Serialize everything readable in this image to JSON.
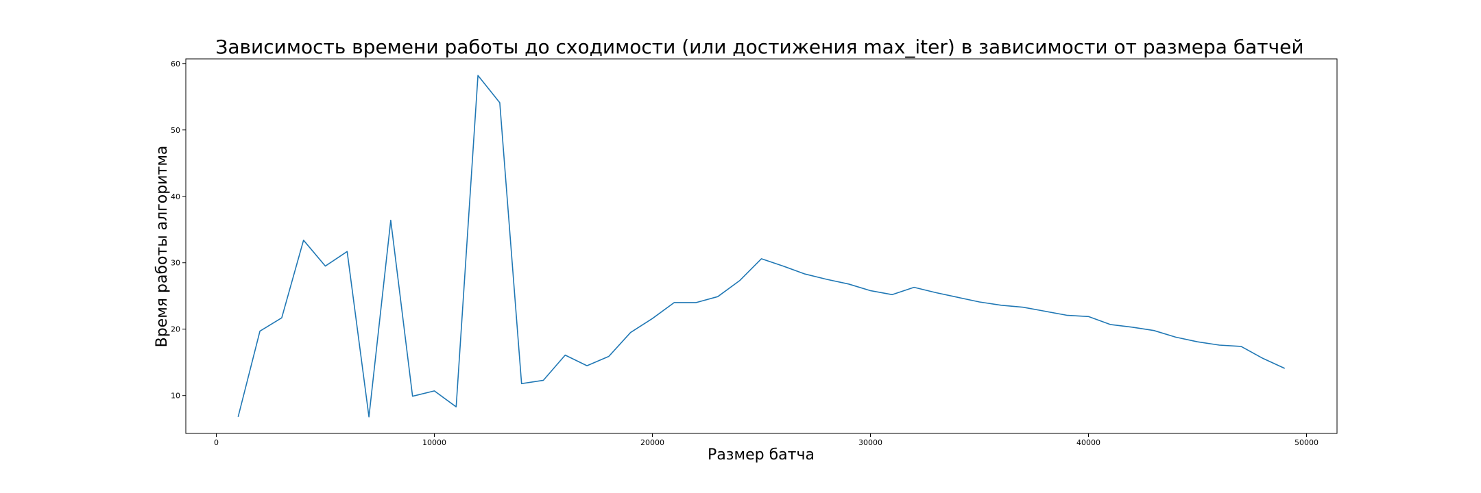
{
  "chart_data": {
    "type": "line",
    "title": "Зависимость времени работы до сходимости (или достижения max_iter) в зависимости от размера батчей",
    "xlabel": "Размер батча",
    "ylabel": "Время работы алгоритма",
    "xlim": [
      -1400,
      51400
    ],
    "ylim": [
      4.3,
      60.7
    ],
    "xticks": [
      0,
      10000,
      20000,
      30000,
      40000,
      50000
    ],
    "xtick_labels": [
      "0",
      "10000",
      "20000",
      "30000",
      "40000",
      "50000"
    ],
    "yticks": [
      10,
      20,
      30,
      40,
      50,
      60
    ],
    "ytick_labels": [
      "10",
      "20",
      "30",
      "40",
      "50",
      "60"
    ],
    "grid": false,
    "legend": "none",
    "series": [
      {
        "color": "#1f77b4",
        "x": [
          1000,
          2000,
          3000,
          4000,
          5000,
          6000,
          7000,
          8000,
          9000,
          10000,
          11000,
          12000,
          13000,
          14000,
          15000,
          16000,
          17000,
          18000,
          19000,
          20000,
          21000,
          22000,
          23000,
          24000,
          25000,
          26000,
          27000,
          28000,
          29000,
          30000,
          31000,
          32000,
          33000,
          34000,
          35000,
          36000,
          37000,
          38000,
          39000,
          40000,
          41000,
          42000,
          43000,
          44000,
          45000,
          46000,
          47000,
          48000,
          49000
        ],
        "y": [
          6.8,
          19.7,
          21.7,
          33.4,
          29.5,
          31.7,
          6.8,
          36.4,
          9.9,
          10.7,
          8.3,
          58.2,
          54.1,
          11.8,
          12.3,
          16.1,
          14.5,
          15.9,
          19.5,
          21.6,
          24.0,
          24.0,
          24.9,
          27.3,
          30.6,
          29.5,
          28.3,
          27.5,
          26.8,
          25.8,
          25.2,
          26.3,
          25.5,
          24.8,
          24.1,
          23.6,
          23.3,
          22.7,
          22.1,
          21.9,
          20.7,
          20.3,
          19.8,
          18.8,
          18.1,
          17.6,
          17.4,
          15.6,
          14.1
        ]
      }
    ]
  }
}
